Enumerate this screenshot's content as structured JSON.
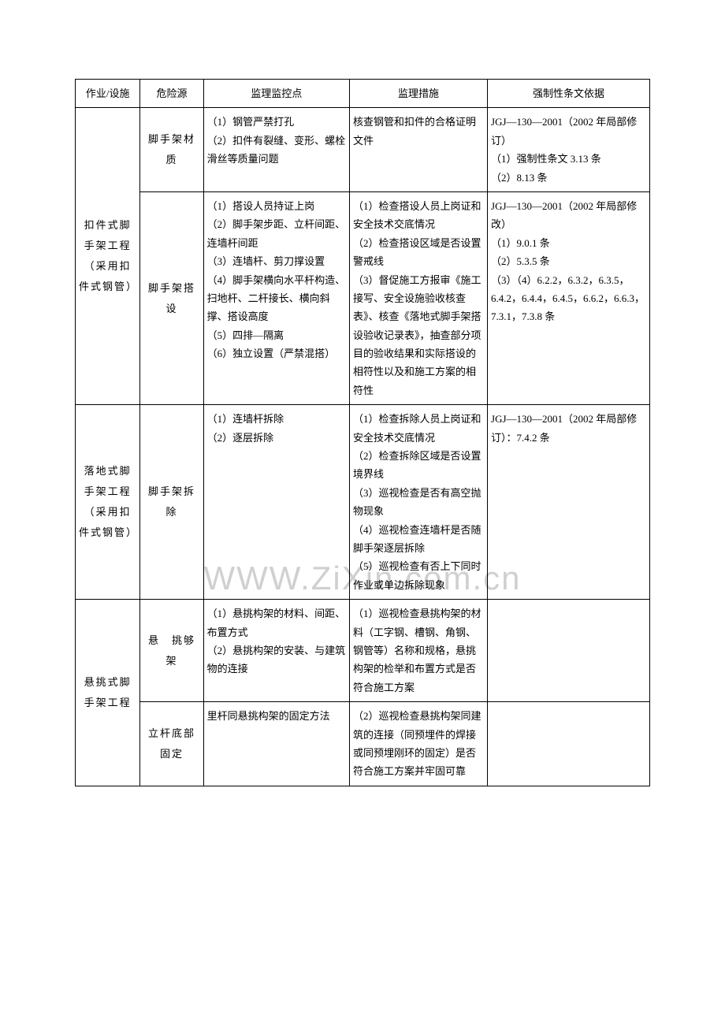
{
  "watermark": "WWW.ZiXin.com.cn",
  "headers": {
    "col1": "作业/设施",
    "col2": "危险源",
    "col3": "监理监控点",
    "col4": "监理措施",
    "col5": "强制性条文依据"
  },
  "rows": [
    {
      "facility": "扣件式脚手架工程（采用扣件式钢管）",
      "subrows": [
        {
          "hazard": "脚手架材　质",
          "control": "（1）钢管严禁打孔\n（2）扣件有裂缝、变形、螺栓滑丝等质量问题",
          "measure": "核查钢管和扣件的合格证明文件",
          "basis": "JGJ—130—2001（2002 年局部修订）\n（1）强制性条文 3.13 条\n（2）8.13 条"
        },
        {
          "hazard": "脚手架搭　设",
          "control": "（1）搭设人员持证上岗\n（2）脚手架步距、立杆间距、连墙杆间距\n（3）连墙杆、剪刀撑设置\n（4）脚手架横向水平杆构造、扫地杆、二杆接长、横向斜撑、搭设高度\n（5）四排—隔离\n（6）独立设置（严禁混搭）",
          "measure": "（1）检查搭设人员上岗证和安全技术交底情况\n（2）检查搭设区域是否设置警戒线\n（3）督促施工方报审《施工接写、安全设施验收核查表》、核查《落地式脚手架搭设验收记录表》，抽查部分项目的验收结果和实际搭设的相符性以及和施工方案的相符性",
          "basis": "JGJ—130—2001（2002 年局部修改）\n（1）9.0.1 条\n（2）5.3.5 条\n（3）（4）6.2.2，6.3.2，6.3.5，6.4.2，6.4.4，6.4.5，6.6.2，6.6.3，7.3.1，7.3.8 条"
        }
      ]
    },
    {
      "facility": "落地式脚手架工程（采用扣件式钢管）",
      "subrows": [
        {
          "hazard": "脚手架拆　除",
          "control": "（1）连墙杆拆除\n（2）逐层拆除",
          "measure": "（1）检查拆除人员上岗证和安全技术交底情况\n（2）检查拆除区域是否设置境界线\n（3）巡视检查是否有高空抛物现象\n（4）巡视检查连墙杆是否随脚手架逐层拆除\n（5）巡视检查有否上下同时作业或单边拆除现象",
          "basis": "JGJ—130—2001（2002 年局部修订）：7.4.2 条"
        }
      ]
    },
    {
      "facility": "悬挑式脚手架工程",
      "subrows": [
        {
          "hazard": "悬　挑够　架",
          "control": "（1）悬挑构架的材料、间距、布置方式\n（2）悬挑构架的安装、与建筑物的连接",
          "measure": "（1）巡视检查悬挑构架的材料（工字钢、槽钢、角钢、钢管等）名称和规格，悬挑构架的检举和布置方式是否符合施工方案",
          "basis": ""
        },
        {
          "hazard": "立杆底部固定",
          "control": "里杆同悬挑构架的固定方法",
          "measure": "（2）巡视检查悬挑构架同建筑的连接（同预埋件的焊接或同预埋刚环的固定）是否符合施工方案并牢固可靠",
          "basis": ""
        }
      ]
    }
  ]
}
